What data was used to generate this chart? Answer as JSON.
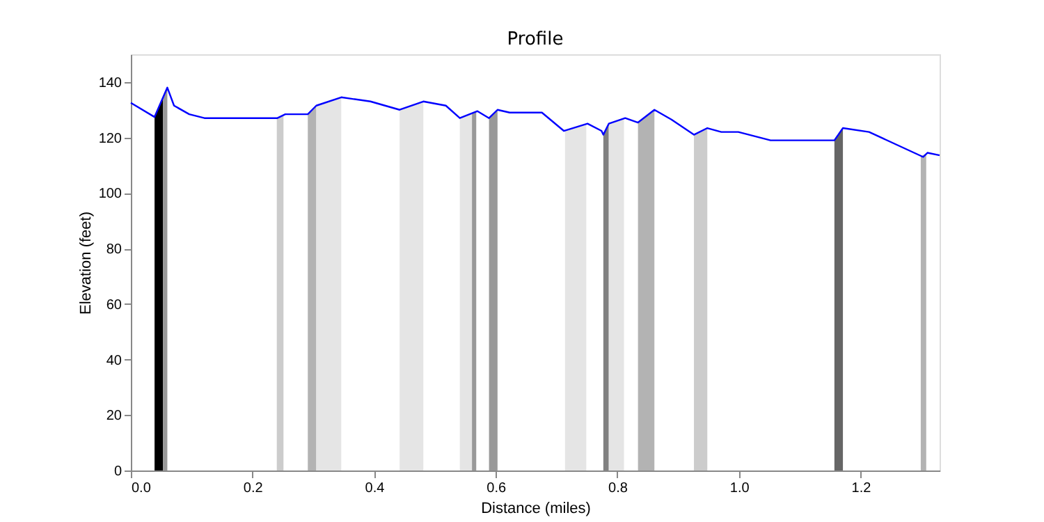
{
  "chart_data": {
    "type": "line",
    "title": "Profile",
    "xlabel": "Distance (miles)",
    "ylabel": "Elevation (feet)",
    "xlim": [
      0,
      1.33
    ],
    "ylim": [
      0,
      150
    ],
    "xticks": [
      {
        "value": 0,
        "label": "0.0"
      },
      0.2,
      0.4,
      0.6,
      0.8,
      {
        "value": 1,
        "label": "1.0"
      },
      1.2
    ],
    "yticks": [
      0,
      20,
      40,
      60,
      80,
      100,
      120,
      140
    ],
    "grid": false,
    "series": [
      {
        "type": "area",
        "color": "#000000",
        "x": [
          0.039,
          0.053
        ],
        "values": [
          127.4,
          134.5
        ]
      },
      {
        "type": "area",
        "color": "#999999",
        "x": [
          0.053,
          0.06
        ],
        "values": [
          134.5,
          138
        ]
      },
      {
        "type": "area",
        "color": "#cccccc",
        "x": [
          0.24,
          0.251
        ],
        "values": [
          127,
          127.8
        ]
      },
      {
        "type": "area",
        "color": "#b3b3b3",
        "x": [
          0.291,
          0.305
        ],
        "values": [
          128.4,
          131.5
        ]
      },
      {
        "type": "area",
        "color": "#e5e5e5",
        "x": [
          0.305,
          0.346
        ],
        "values": [
          131.5,
          134.5
        ]
      },
      {
        "type": "area",
        "color": "#e5e5e5",
        "x": [
          0.442,
          0.481
        ],
        "values": [
          130,
          133
        ]
      },
      {
        "type": "area",
        "color": "#e5e5e5",
        "x": [
          0.541,
          0.561
        ],
        "values": [
          127,
          128.8
        ]
      },
      {
        "type": "area",
        "color": "#999999",
        "x": [
          0.561,
          0.568
        ],
        "values": [
          128.8,
          129.4
        ]
      },
      {
        "type": "area",
        "color": "#999999",
        "x": [
          0.589,
          0.603
        ],
        "values": [
          127,
          130
        ]
      },
      {
        "type": "area",
        "color": "#e5e5e5",
        "x": [
          0.714,
          0.749
        ],
        "values": [
          122.5,
          124.9
        ]
      },
      {
        "type": "area",
        "color": "#808080",
        "x": [
          0.777,
          0.786
        ],
        "values": [
          121.5,
          125
        ]
      },
      {
        "type": "area",
        "color": "#e5e5e5",
        "x": [
          0.786,
          0.811
        ],
        "values": [
          125,
          126.8
        ]
      },
      {
        "type": "area",
        "color": "#b3b3b3",
        "x": [
          0.834,
          0.861
        ],
        "values": [
          125.4,
          130
        ]
      },
      {
        "type": "area",
        "color": "#cccccc",
        "x": [
          0.926,
          0.948
        ],
        "values": [
          121,
          123.4
        ]
      },
      {
        "type": "area",
        "color": "#666666",
        "x": [
          1.157,
          1.171
        ],
        "values": [
          119,
          123.4
        ]
      },
      {
        "type": "area",
        "color": "#b3b3b3",
        "x": [
          1.299,
          1.308
        ],
        "values": [
          113.2,
          114.3
        ]
      },
      {
        "color": "#0000ff",
        "x": [
          0,
          0.039,
          0.06,
          0.071,
          0.096,
          0.121,
          0.241,
          0.254,
          0.291,
          0.305,
          0.346,
          0.394,
          0.442,
          0.481,
          0.518,
          0.541,
          0.57,
          0.589,
          0.603,
          0.623,
          0.676,
          0.712,
          0.751,
          0.774,
          0.777,
          0.786,
          0.813,
          0.834,
          0.861,
          0.889,
          0.926,
          0.948,
          0.971,
          0.999,
          1.052,
          1.157,
          1.171,
          1.214,
          1.303,
          1.31,
          1.33
        ],
        "values": [
          132.5,
          127.4,
          138,
          131.5,
          128.4,
          127,
          127,
          128.4,
          128.4,
          131.5,
          134.5,
          133,
          130,
          133,
          131.5,
          127,
          129.5,
          127,
          130,
          129,
          129,
          122.4,
          125,
          122.4,
          121,
          125,
          127,
          125.4,
          130,
          126.5,
          121,
          123.4,
          122,
          122,
          119,
          119,
          123.4,
          122,
          113,
          114.5,
          113.6
        ]
      }
    ]
  }
}
